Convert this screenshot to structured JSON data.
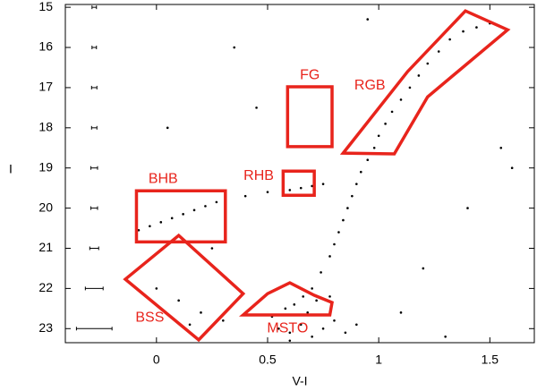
{
  "chart_data": {
    "type": "scatter",
    "xlabel": "V-I",
    "ylabel": "I",
    "xlim": [
      -0.41,
      1.7
    ],
    "ylim": [
      23.35,
      14.93
    ],
    "xticks": [
      0,
      0.5,
      1,
      1.5
    ],
    "yticks": [
      15,
      16,
      17,
      18,
      19,
      20,
      21,
      22,
      23
    ],
    "point_color": "#000000",
    "x": [
      0.55,
      0.6,
      0.65,
      0.7,
      0.75,
      0.8,
      0.85,
      0.52,
      0.58,
      0.62,
      0.68,
      0.72,
      0.78,
      0.66,
      0.6,
      0.7,
      0.74,
      0.78,
      0.8,
      0.82,
      0.84,
      0.86,
      0.88,
      0.9,
      0.92,
      0.95,
      0.98,
      1.0,
      1.03,
      1.06,
      1.1,
      1.14,
      1.18,
      1.22,
      1.27,
      1.32,
      1.38,
      1.44,
      1.5,
      -0.08,
      -0.03,
      0.02,
      0.07,
      0.12,
      0.17,
      0.22,
      0.27,
      0.4,
      0.5,
      0.6,
      0.65,
      0.7,
      0.75,
      0.0,
      0.1,
      0.2,
      0.3,
      0.15,
      1.2,
      1.4,
      1.55,
      0.35,
      0.45,
      0.9,
      1.1,
      1.3,
      1.6,
      0.25,
      0.05,
      0.95
    ],
    "y": [
      23.0,
      23.1,
      22.9,
      23.2,
      23.0,
      22.8,
      23.1,
      22.7,
      22.5,
      22.4,
      22.6,
      22.3,
      22.2,
      22.2,
      23.3,
      22.0,
      21.6,
      21.2,
      20.9,
      20.6,
      20.3,
      20.0,
      19.7,
      19.4,
      19.1,
      18.8,
      18.5,
      18.2,
      17.9,
      17.6,
      17.3,
      17.0,
      16.7,
      16.4,
      16.1,
      15.8,
      15.6,
      15.5,
      15.4,
      20.55,
      20.45,
      20.35,
      20.25,
      20.15,
      20.05,
      19.95,
      19.85,
      19.7,
      19.6,
      19.55,
      19.5,
      19.45,
      19.4,
      22.0,
      22.3,
      22.6,
      22.8,
      22.9,
      21.5,
      20.0,
      18.5,
      16.0,
      17.5,
      22.9,
      22.6,
      23.2,
      19.0,
      21.0,
      18.0,
      15.3
    ],
    "error_bars": {
      "x": [
        -0.28,
        -0.28,
        -0.28,
        -0.28,
        -0.28,
        -0.28,
        -0.28,
        -0.28,
        -0.28
      ],
      "y": [
        15,
        16,
        17,
        18,
        19,
        20,
        21,
        22,
        23
      ],
      "xerr": [
        0.01,
        0.01,
        0.012,
        0.012,
        0.015,
        0.015,
        0.02,
        0.04,
        0.08
      ],
      "color": "#000000"
    },
    "regions": [
      {
        "label": "FG",
        "x": [
          0.59,
          0.79,
          0.79,
          0.59
        ],
        "y": [
          16.98,
          16.98,
          18.47,
          18.47
        ],
        "label_x": 0.69,
        "label_y": 16.7
      },
      {
        "label": "RGB",
        "x": [
          0.84,
          1.13,
          1.39,
          1.58,
          1.22,
          1.07
        ],
        "y": [
          18.63,
          16.6,
          15.09,
          15.56,
          17.23,
          18.65
        ],
        "label_x": 0.96,
        "label_y": 16.95
      },
      {
        "label": "RHB",
        "x": [
          0.57,
          0.71,
          0.71,
          0.57
        ],
        "y": [
          19.08,
          19.08,
          19.68,
          19.68
        ],
        "label_x": 0.46,
        "label_y": 19.2
      },
      {
        "label": "BHB",
        "x": [
          -0.09,
          0.31,
          0.31,
          -0.09
        ],
        "y": [
          19.57,
          19.57,
          20.84,
          20.84
        ],
        "label_x": 0.03,
        "label_y": 19.28
      },
      {
        "label": "BSS",
        "x": [
          -0.14,
          0.1,
          0.39,
          0.19
        ],
        "y": [
          21.77,
          20.68,
          22.13,
          23.28
        ],
        "label_x": -0.03,
        "label_y": 22.73
      },
      {
        "label": "MSTO",
        "x": [
          0.39,
          0.5,
          0.6,
          0.71,
          0.79,
          0.78
        ],
        "y": [
          22.66,
          22.13,
          21.86,
          22.17,
          22.35,
          22.66
        ],
        "label_x": 0.59,
        "label_y": 23.0
      }
    ],
    "region_color": "#e8241c"
  }
}
